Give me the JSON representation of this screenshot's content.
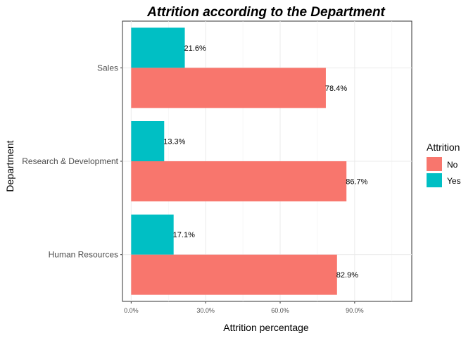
{
  "chart_data": {
    "type": "bar",
    "orientation": "horizontal",
    "title": "Attrition according to the Department",
    "xlabel": "Attrition percentage",
    "ylabel": "Department",
    "categories": [
      "Sales",
      "Research & Development",
      "Human Resources"
    ],
    "series": [
      {
        "name": "Yes",
        "color": "#00BFC4",
        "values": [
          21.6,
          13.3,
          17.1
        ],
        "labels": [
          "21.6%",
          "13.3%",
          "17.1%"
        ]
      },
      {
        "name": "No",
        "color": "#F8766D",
        "values": [
          78.4,
          86.7,
          82.9
        ],
        "labels": [
          "78.4%",
          "86.7%",
          "82.9%"
        ]
      }
    ],
    "xlim": [
      -3.5,
      113
    ],
    "xticks": [
      0,
      30,
      60,
      90
    ],
    "xtick_labels": [
      "0.0%",
      "30.0%",
      "60.0%",
      "90.0%"
    ],
    "grid": true,
    "legend": {
      "title": "Attrition",
      "position": "right",
      "entries": [
        {
          "label": "No",
          "color": "#F8766D"
        },
        {
          "label": "Yes",
          "color": "#00BFC4"
        }
      ]
    }
  }
}
